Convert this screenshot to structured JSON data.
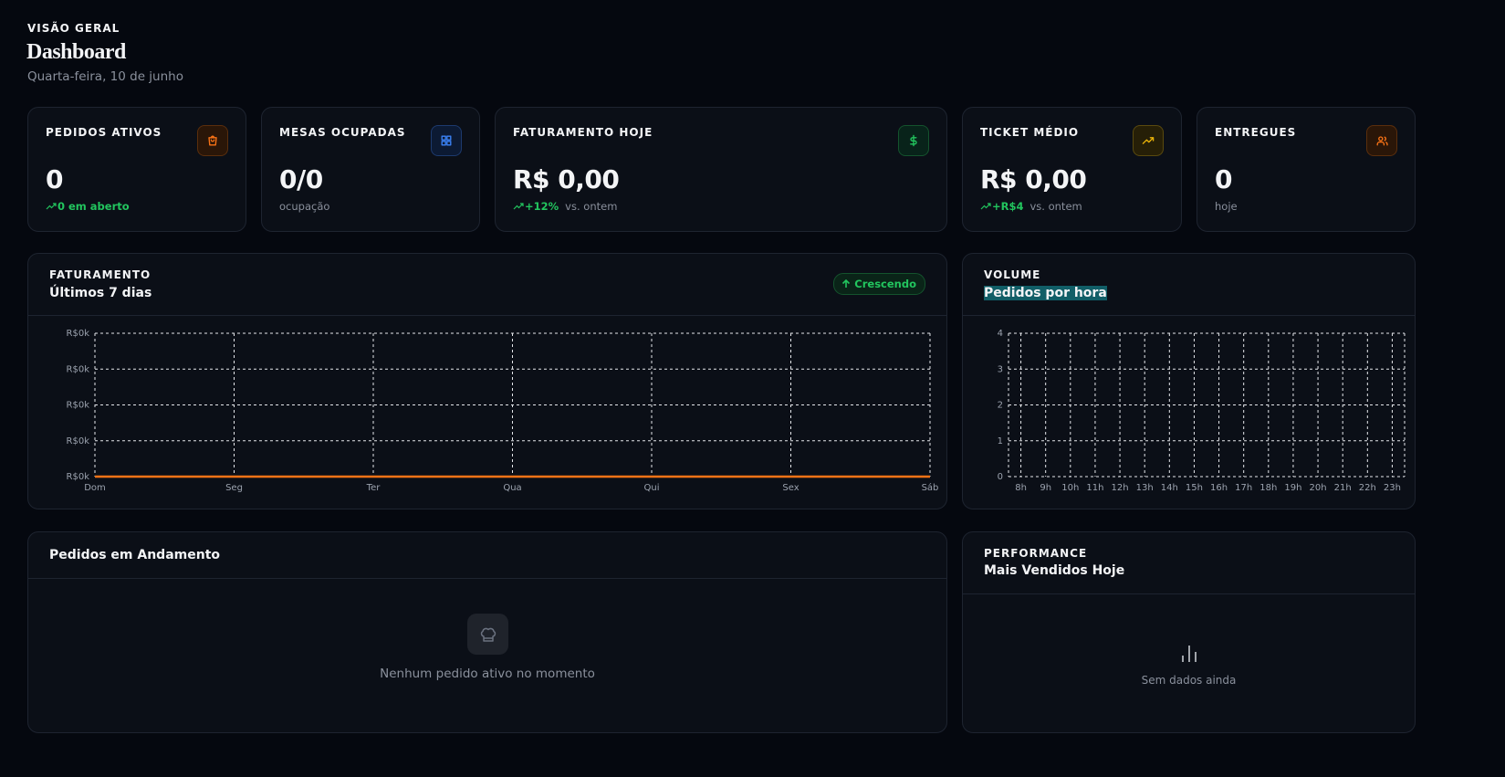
{
  "header": {
    "eyebrow": "VISÃO GERAL",
    "title": "Dashboard",
    "date": "Quarta-feira, 10 de junho"
  },
  "stats": [
    {
      "label": "PEDIDOS ATIVOS",
      "value": "0",
      "trend": "0 em aberto"
    },
    {
      "label": "MESAS OCUPADAS",
      "value": "0/0",
      "note": "ocupação"
    },
    {
      "label": "FATURAMENTO HOJE",
      "value": "R$ 0,00",
      "trend": "+12%",
      "note": "vs. ontem"
    },
    {
      "label": "TICKET MÉDIO",
      "value": "R$ 0,00",
      "trend": "+R$4",
      "note": "vs. ontem"
    },
    {
      "label": "ENTREGUES",
      "value": "0",
      "note": "hoje"
    }
  ],
  "chart_data": [
    {
      "type": "line",
      "eyebrow": "FATURAMENTO",
      "title": "Últimos 7 dias",
      "badge": "Crescendo",
      "categories": [
        "Dom",
        "Seg",
        "Ter",
        "Qua",
        "Qui",
        "Sex",
        "Sáb"
      ],
      "values": [
        0,
        0,
        0,
        0,
        0,
        0,
        0
      ],
      "color": "#f97316",
      "ylim": [
        0,
        4
      ],
      "yticks": [
        {
          "value": 0,
          "label": "R$0k"
        },
        {
          "value": 1,
          "label": "R$0k"
        },
        {
          "value": 2,
          "label": "R$0k"
        },
        {
          "value": 3,
          "label": "R$0k"
        },
        {
          "value": 4,
          "label": "R$0k"
        }
      ],
      "grid": true
    },
    {
      "type": "bar",
      "eyebrow": "VOLUME",
      "title": "Pedidos por hora",
      "categories": [
        "8h",
        "9h",
        "10h",
        "11h",
        "12h",
        "13h",
        "14h",
        "15h",
        "16h",
        "17h",
        "18h",
        "19h",
        "20h",
        "21h",
        "22h",
        "23h"
      ],
      "values": [
        0,
        0,
        0,
        0,
        0,
        0,
        0,
        0,
        0,
        0,
        0,
        0,
        0,
        0,
        0,
        0
      ],
      "color": "#14b8a6",
      "ylim": [
        0,
        4
      ],
      "yticks": [
        0,
        1,
        2,
        3,
        4
      ],
      "grid": true
    }
  ],
  "orders": {
    "title": "Pedidos em Andamento",
    "empty": "Nenhum pedido ativo no momento"
  },
  "top": {
    "eyebrow": "PERFORMANCE",
    "title": "Mais Vendidos Hoje",
    "empty": "Sem dados ainda"
  }
}
